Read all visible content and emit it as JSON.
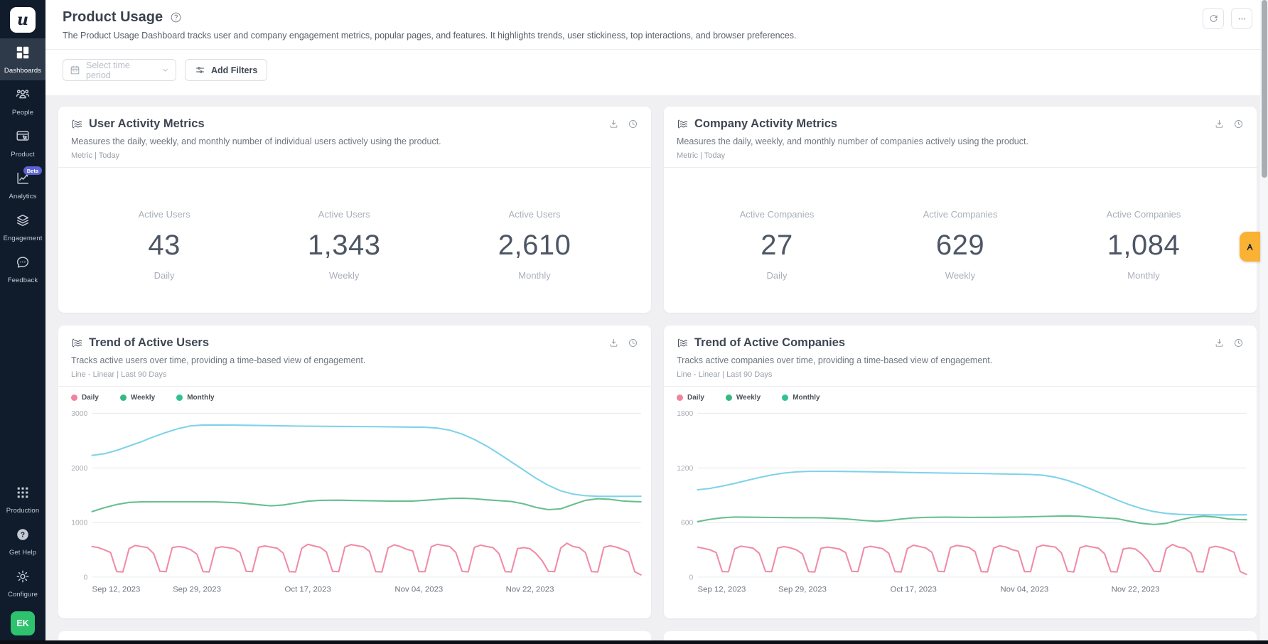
{
  "app": {
    "logo_letter": "u"
  },
  "sidebar": {
    "items": [
      {
        "label": "Dashboards",
        "active": true
      },
      {
        "label": "People",
        "active": false
      },
      {
        "label": "Product",
        "active": false
      },
      {
        "label": "Analytics",
        "active": false,
        "badge": "Beta"
      },
      {
        "label": "Engagement",
        "active": false
      },
      {
        "label": "Feedback",
        "active": false
      }
    ],
    "bottom_items": [
      {
        "label": "Production"
      },
      {
        "label": "Get Help"
      },
      {
        "label": "Configure"
      }
    ],
    "avatar_initials": "EK"
  },
  "header": {
    "title": "Product Usage",
    "description": "The Product Usage Dashboard tracks user and company engagement metrics, popular pages, and features. It highlights trends, user stickiness, top interactions, and browser preferences."
  },
  "filters": {
    "time_period_placeholder": "Select time period",
    "add_filters_label": "Add Filters"
  },
  "cards": {
    "user_metrics": {
      "title": "User Activity Metrics",
      "description": "Measures the daily, weekly, and monthly number of individual users actively using the product.",
      "meta": "Metric | Today",
      "metrics": [
        {
          "label": "Active Users",
          "value": "43",
          "period": "Daily"
        },
        {
          "label": "Active Users",
          "value": "1,343",
          "period": "Weekly"
        },
        {
          "label": "Active Users",
          "value": "2,610",
          "period": "Monthly"
        }
      ]
    },
    "company_metrics": {
      "title": "Company Activity Metrics",
      "description": "Measures the daily, weekly, and monthly number of companies actively using the product.",
      "meta": "Metric | Today",
      "metrics": [
        {
          "label": "Active Companies",
          "value": "27",
          "period": "Daily"
        },
        {
          "label": "Active Companies",
          "value": "629",
          "period": "Weekly"
        },
        {
          "label": "Active Companies",
          "value": "1,084",
          "period": "Monthly"
        }
      ]
    },
    "users_trend": {
      "title": "Trend of Active Users",
      "description": "Tracks active users over time, providing a time-based view of engagement.",
      "meta": "Line - Linear | Last 90 Days"
    },
    "companies_trend": {
      "title": "Trend of Active Companies",
      "description": "Tracks active companies over time, providing a time-based view of engagement.",
      "meta": "Line - Linear | Last 90 Days"
    }
  },
  "colors": {
    "sidebar_bg": "#101b2b",
    "active_item_bg": "#2e3949",
    "avatar_green": "#2ec16e",
    "beta_badge": "#5d63d1",
    "side_tab_amber": "#f9b234",
    "daily_line": "#f08ca7",
    "weekly_line": "#66bf8e",
    "monthly_line": "#7fd2ea"
  },
  "chart_data": [
    {
      "id": "users_trend",
      "type": "line",
      "title": "Trend of Active Users",
      "x_max": 89,
      "ylim": [
        0,
        3000
      ],
      "yticks": [
        0,
        1000,
        2000,
        3000
      ],
      "xticks": [
        {
          "pos": 0,
          "label": "Sep 12, 2023"
        },
        {
          "pos": 17,
          "label": "Sep 29, 2023"
        },
        {
          "pos": 35,
          "label": "Oct 17, 2023"
        },
        {
          "pos": 53,
          "label": "Nov 04, 2023"
        },
        {
          "pos": 71,
          "label": "Nov 22, 2023"
        }
      ],
      "legend": [
        {
          "label": "Daily",
          "color": "#f0849f"
        },
        {
          "label": "Weekly",
          "color": "#36b881"
        },
        {
          "label": "Monthly",
          "color": "#2ec391"
        }
      ],
      "series": [
        {
          "name": "Monthly",
          "color": "#7fd2ea",
          "points": [
            [
              0,
              2230
            ],
            [
              2,
              2260
            ],
            [
              4,
              2320
            ],
            [
              6,
              2400
            ],
            [
              8,
              2480
            ],
            [
              10,
              2570
            ],
            [
              12,
              2650
            ],
            [
              14,
              2720
            ],
            [
              16,
              2770
            ],
            [
              18,
              2785
            ],
            [
              22,
              2785
            ],
            [
              28,
              2775
            ],
            [
              34,
              2765
            ],
            [
              40,
              2760
            ],
            [
              46,
              2755
            ],
            [
              50,
              2750
            ],
            [
              54,
              2745
            ],
            [
              56,
              2730
            ],
            [
              58,
              2690
            ],
            [
              60,
              2620
            ],
            [
              62,
              2520
            ],
            [
              64,
              2400
            ],
            [
              66,
              2260
            ],
            [
              68,
              2110
            ],
            [
              70,
              1960
            ],
            [
              72,
              1810
            ],
            [
              74,
              1680
            ],
            [
              76,
              1580
            ],
            [
              78,
              1520
            ],
            [
              80,
              1490
            ],
            [
              82,
              1480
            ],
            [
              85,
              1478
            ],
            [
              89,
              1480
            ]
          ]
        },
        {
          "name": "Weekly",
          "color": "#66bf8e",
          "points": [
            [
              0,
              1200
            ],
            [
              2,
              1270
            ],
            [
              4,
              1330
            ],
            [
              6,
              1368
            ],
            [
              8,
              1378
            ],
            [
              12,
              1380
            ],
            [
              16,
              1380
            ],
            [
              20,
              1378
            ],
            [
              24,
              1360
            ],
            [
              27,
              1325
            ],
            [
              29,
              1305
            ],
            [
              31,
              1320
            ],
            [
              33,
              1355
            ],
            [
              35,
              1390
            ],
            [
              37,
              1405
            ],
            [
              40,
              1408
            ],
            [
              44,
              1400
            ],
            [
              48,
              1392
            ],
            [
              52,
              1392
            ],
            [
              55,
              1415
            ],
            [
              58,
              1440
            ],
            [
              60,
              1445
            ],
            [
              62,
              1435
            ],
            [
              64,
              1415
            ],
            [
              66,
              1400
            ],
            [
              68,
              1385
            ],
            [
              70,
              1340
            ],
            [
              72,
              1275
            ],
            [
              74,
              1235
            ],
            [
              76,
              1250
            ],
            [
              78,
              1330
            ],
            [
              80,
              1405
            ],
            [
              82,
              1435
            ],
            [
              84,
              1425
            ],
            [
              86,
              1395
            ],
            [
              88,
              1382
            ],
            [
              89,
              1380
            ]
          ]
        },
        {
          "name": "Daily",
          "color": "#f08ca7",
          "values": [
            560,
            540,
            500,
            450,
            100,
            95,
            520,
            580,
            560,
            540,
            430,
            105,
            100,
            540,
            560,
            545,
            500,
            420,
            100,
            95,
            530,
            555,
            540,
            520,
            450,
            105,
            100,
            545,
            570,
            550,
            530,
            440,
            100,
            95,
            525,
            600,
            570,
            545,
            460,
            105,
            100,
            550,
            595,
            575,
            555,
            470,
            100,
            95,
            535,
            590,
            560,
            510,
            480,
            100,
            100,
            555,
            600,
            580,
            560,
            450,
            105,
            95,
            545,
            585,
            560,
            540,
            430,
            100,
            95,
            520,
            540,
            520,
            430,
            300,
            105,
            100,
            530,
            620,
            560,
            540,
            450,
            100,
            95,
            545,
            575,
            550,
            510,
            460,
            100,
            40
          ]
        }
      ]
    },
    {
      "id": "companies_trend",
      "type": "line",
      "title": "Trend of Active Companies",
      "x_max": 89,
      "ylim": [
        0,
        1800
      ],
      "yticks": [
        0,
        600,
        1200,
        1800
      ],
      "xticks": [
        {
          "pos": 0,
          "label": "Sep 12, 2023"
        },
        {
          "pos": 17,
          "label": "Sep 29, 2023"
        },
        {
          "pos": 35,
          "label": "Oct 17, 2023"
        },
        {
          "pos": 53,
          "label": "Nov 04, 2023"
        },
        {
          "pos": 71,
          "label": "Nov 22, 2023"
        }
      ],
      "legend": [
        {
          "label": "Daily",
          "color": "#f0849f"
        },
        {
          "label": "Weekly",
          "color": "#36b881"
        },
        {
          "label": "Monthly",
          "color": "#2ec391"
        }
      ],
      "series": [
        {
          "name": "Monthly",
          "color": "#7fd2ea",
          "points": [
            [
              0,
              960
            ],
            [
              2,
              975
            ],
            [
              4,
              1000
            ],
            [
              6,
              1030
            ],
            [
              8,
              1062
            ],
            [
              10,
              1095
            ],
            [
              12,
              1122
            ],
            [
              14,
              1143
            ],
            [
              16,
              1156
            ],
            [
              18,
              1162
            ],
            [
              22,
              1163
            ],
            [
              28,
              1158
            ],
            [
              34,
              1150
            ],
            [
              40,
              1143
            ],
            [
              46,
              1138
            ],
            [
              50,
              1133
            ],
            [
              54,
              1128
            ],
            [
              56,
              1120
            ],
            [
              58,
              1098
            ],
            [
              60,
              1062
            ],
            [
              62,
              1015
            ],
            [
              64,
              962
            ],
            [
              66,
              905
            ],
            [
              68,
              848
            ],
            [
              70,
              795
            ],
            [
              72,
              752
            ],
            [
              74,
              720
            ],
            [
              76,
              700
            ],
            [
              78,
              690
            ],
            [
              80,
              685
            ],
            [
              84,
              683
            ],
            [
              89,
              685
            ]
          ]
        },
        {
          "name": "Weekly",
          "color": "#66bf8e",
          "points": [
            [
              0,
              610
            ],
            [
              2,
              635
            ],
            [
              4,
              652
            ],
            [
              6,
              660
            ],
            [
              8,
              658
            ],
            [
              12,
              655
            ],
            [
              16,
              653
            ],
            [
              20,
              652
            ],
            [
              24,
              640
            ],
            [
              27,
              622
            ],
            [
              29,
              614
            ],
            [
              31,
              622
            ],
            [
              33,
              638
            ],
            [
              35,
              650
            ],
            [
              37,
              656
            ],
            [
              40,
              658
            ],
            [
              44,
              656
            ],
            [
              48,
              657
            ],
            [
              52,
              660
            ],
            [
              55,
              665
            ],
            [
              58,
              670
            ],
            [
              60,
              672
            ],
            [
              62,
              668
            ],
            [
              64,
              658
            ],
            [
              66,
              650
            ],
            [
              68,
              642
            ],
            [
              70,
              615
            ],
            [
              72,
              590
            ],
            [
              74,
              578
            ],
            [
              76,
              590
            ],
            [
              78,
              625
            ],
            [
              80,
              655
            ],
            [
              82,
              668
            ],
            [
              84,
              660
            ],
            [
              86,
              640
            ],
            [
              88,
              632
            ],
            [
              89,
              630
            ]
          ]
        },
        {
          "name": "Daily",
          "color": "#f08ca7",
          "values": [
            330,
            315,
            300,
            270,
            60,
            58,
            310,
            340,
            330,
            318,
            260,
            62,
            60,
            320,
            335,
            322,
            300,
            255,
            60,
            57,
            315,
            330,
            320,
            308,
            270,
            63,
            60,
            322,
            338,
            326,
            312,
            262,
            60,
            57,
            312,
            350,
            336,
            320,
            272,
            63,
            60,
            325,
            348,
            338,
            326,
            278,
            60,
            57,
            318,
            345,
            330,
            302,
            284,
            60,
            60,
            328,
            350,
            340,
            330,
            266,
            63,
            57,
            322,
            344,
            330,
            318,
            256,
            60,
            57,
            308,
            320,
            308,
            256,
            180,
            63,
            60,
            314,
            358,
            330,
            318,
            266,
            60,
            57,
            322,
            338,
            324,
            302,
            272,
            60,
            30
          ]
        }
      ]
    }
  ]
}
